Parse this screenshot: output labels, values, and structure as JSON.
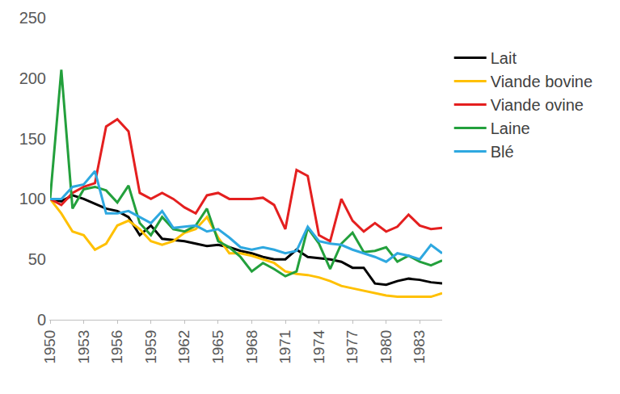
{
  "chart_data": {
    "type": "line",
    "x": [
      1950,
      1951,
      1952,
      1953,
      1954,
      1955,
      1956,
      1957,
      1958,
      1959,
      1960,
      1961,
      1962,
      1963,
      1964,
      1965,
      1966,
      1967,
      1968,
      1969,
      1970,
      1971,
      1972,
      1973,
      1974,
      1975,
      1976,
      1977,
      1978,
      1979,
      1980,
      1981,
      1982,
      1983,
      1984,
      1985
    ],
    "series": [
      {
        "name": "Lait",
        "color": "#000000",
        "values": [
          100,
          98,
          103,
          100,
          96,
          92,
          90,
          85,
          70,
          78,
          67,
          66,
          65,
          63,
          61,
          62,
          60,
          57,
          55,
          52,
          50,
          50,
          58,
          52,
          51,
          50,
          48,
          43,
          43,
          30,
          29,
          32,
          34,
          33,
          31,
          30
        ]
      },
      {
        "name": "Viande bovine",
        "color": "#ffc000",
        "values": [
          100,
          88,
          73,
          70,
          58,
          63,
          78,
          82,
          75,
          65,
          62,
          65,
          72,
          75,
          85,
          68,
          55,
          55,
          53,
          50,
          47,
          40,
          38,
          37,
          35,
          32,
          28,
          26,
          24,
          22,
          20,
          19,
          19,
          19,
          19,
          22
        ]
      },
      {
        "name": "Viande ovine",
        "color": "#e41f1f",
        "values": [
          100,
          95,
          105,
          110,
          113,
          160,
          166,
          156,
          105,
          100,
          105,
          100,
          93,
          88,
          103,
          105,
          100,
          100,
          100,
          101,
          95,
          75,
          124,
          119,
          70,
          65,
          100,
          82,
          73,
          80,
          73,
          77,
          87,
          78,
          75,
          76
        ]
      },
      {
        "name": "Laine",
        "color": "#23a03c",
        "values": [
          100,
          207,
          92,
          108,
          110,
          107,
          97,
          111,
          80,
          70,
          85,
          75,
          73,
          78,
          92,
          65,
          60,
          52,
          40,
          47,
          42,
          36,
          40,
          76,
          63,
          42,
          63,
          72,
          56,
          57,
          60,
          48,
          53,
          48,
          45,
          49
        ]
      },
      {
        "name": "Blé",
        "color": "#2ea8e0",
        "values": [
          100,
          100,
          110,
          112,
          123,
          88,
          88,
          90,
          85,
          80,
          90,
          76,
          77,
          78,
          73,
          75,
          68,
          60,
          58,
          60,
          58,
          55,
          57,
          77,
          65,
          63,
          62,
          58,
          55,
          52,
          48,
          55,
          53,
          50,
          62,
          55
        ]
      }
    ],
    "xlim": [
      1950,
      1985
    ],
    "xticks": [
      1950,
      1953,
      1956,
      1959,
      1962,
      1965,
      1968,
      1971,
      1974,
      1977,
      1980,
      1983
    ],
    "ylim": [
      0,
      250
    ],
    "yticks": [
      0,
      50,
      100,
      150,
      200,
      250
    ],
    "grid": false,
    "legend": "right"
  }
}
